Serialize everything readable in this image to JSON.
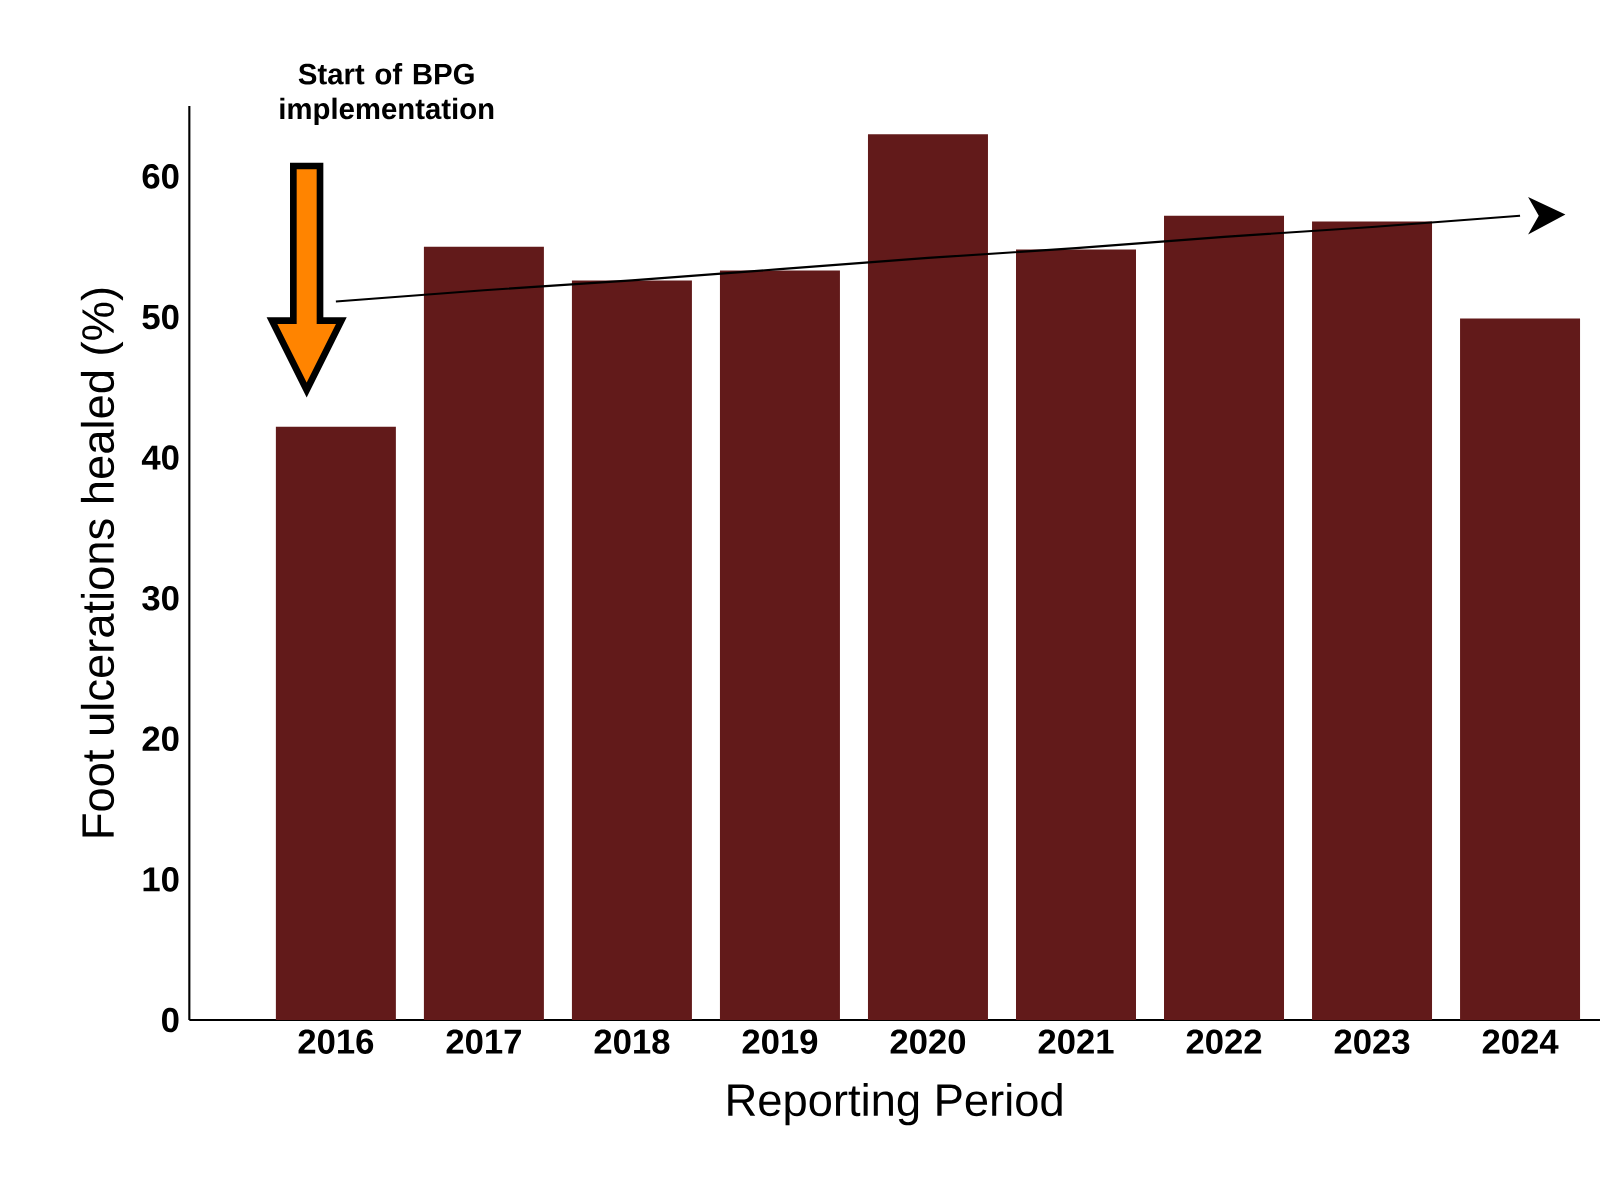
{
  "chart_data": {
    "type": "bar",
    "xlabel": "Reporting Period",
    "ylabel": "Foot ulcerations healed (%)",
    "categories": [
      "2016",
      "2017",
      "2018",
      "2019",
      "2020",
      "2021",
      "2022",
      "2023",
      "2024"
    ],
    "series": [
      {
        "color": "#621a1a",
        "values": [
          42.2,
          55.0,
          52.6,
          53.3,
          63.0,
          54.8,
          57.2,
          56.8,
          49.9
        ]
      },
      {
        "type": "line",
        "color": "#000000",
        "values": [
          51.1,
          51.9,
          52.6,
          53.4,
          54.2,
          54.9,
          55.7,
          56.4,
          57.2
        ]
      }
    ],
    "ylim": [
      0,
      65
    ],
    "yticks": [
      0,
      10,
      20,
      30,
      40,
      50,
      60
    ],
    "annotations": [
      "Start of BPG implementation"
    ]
  }
}
